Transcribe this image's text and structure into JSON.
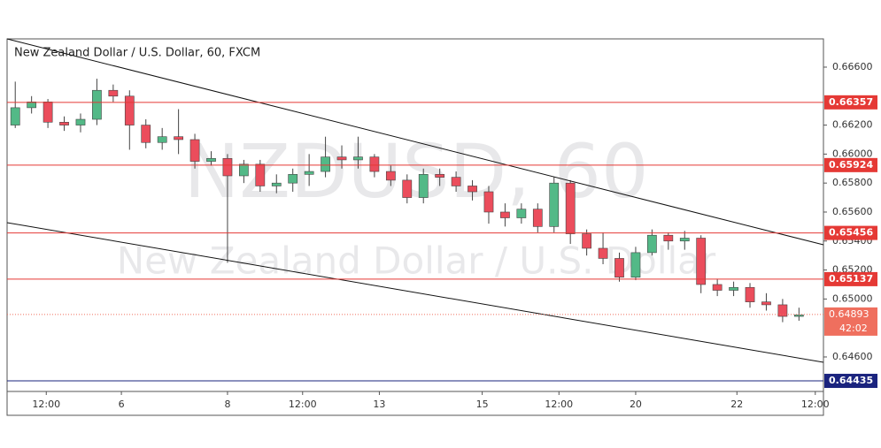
{
  "chart_data": {
    "type": "candlestick",
    "title": "New Zealand Dollar / U.S. Dollar, 60, FXCM",
    "watermark": "NZDUSD, 60",
    "watermark_subtitle": "New Zealand Dollar / U.S. Dollar",
    "up_color": "#53b987",
    "down_color": "#eb4d5c",
    "xlim": [
      0,
      50
    ],
    "ylim": [
      0.64362,
      0.66795
    ],
    "xticks": [
      {
        "value": 2.4,
        "label": "12:00"
      },
      {
        "value": 7.0,
        "label": "6"
      },
      {
        "value": 13.5,
        "label": "8"
      },
      {
        "value": 18.1,
        "label": "12:00"
      },
      {
        "value": 22.8,
        "label": "13"
      },
      {
        "value": 29.1,
        "label": "15"
      },
      {
        "value": 33.8,
        "label": "12:00"
      },
      {
        "value": 38.5,
        "label": "20"
      },
      {
        "value": 44.7,
        "label": "22"
      },
      {
        "value": 49.5,
        "label": "12:00"
      }
    ],
    "yticks": [
      {
        "value": 0.666,
        "label": "0.66600"
      },
      {
        "value": 0.662,
        "label": "0.66200"
      },
      {
        "value": 0.66,
        "label": "0.66000"
      },
      {
        "value": 0.658,
        "label": "0.65800"
      },
      {
        "value": 0.656,
        "label": "0.65600"
      },
      {
        "value": 0.654,
        "label": "0.65400"
      },
      {
        "value": 0.652,
        "label": "0.65200"
      },
      {
        "value": 0.65,
        "label": "0.65000"
      },
      {
        "value": 0.646,
        "label": "0.64600"
      }
    ],
    "x": [
      0.5,
      1.5,
      2.5,
      3.5,
      4.5,
      5.5,
      6.5,
      7.5,
      8.5,
      9.5,
      10.5,
      11.5,
      12.5,
      13.5,
      14.5,
      15.5,
      16.5,
      17.5,
      18.5,
      19.5,
      20.5,
      21.5,
      22.5,
      23.5,
      24.5,
      25.5,
      26.5,
      27.5,
      28.5,
      29.5,
      30.5,
      31.5,
      32.5,
      33.5,
      34.5,
      35.5,
      36.5,
      37.5,
      38.5,
      39.5,
      40.5,
      41.5,
      42.5,
      43.5,
      44.5,
      45.5,
      46.5,
      47.5,
      48.5
    ],
    "open": [
      0.662,
      0.6632,
      0.6636,
      0.6622,
      0.662,
      0.6624,
      0.6644,
      0.664,
      0.662,
      0.6608,
      0.6612,
      0.661,
      0.6595,
      0.6597,
      0.6585,
      0.6593,
      0.6578,
      0.658,
      0.6586,
      0.6588,
      0.6598,
      0.6596,
      0.6598,
      0.6588,
      0.6582,
      0.657,
      0.6586,
      0.6584,
      0.6578,
      0.6574,
      0.656,
      0.6556,
      0.6562,
      0.655,
      0.658,
      0.6545,
      0.6535,
      0.6528,
      0.6515,
      0.6532,
      0.6544,
      0.654,
      0.6542,
      0.651,
      0.6506,
      0.6508,
      0.6498,
      0.6496,
      0.6488
    ],
    "high": [
      0.665,
      0.664,
      0.6638,
      0.6626,
      0.6628,
      0.6652,
      0.6648,
      0.6644,
      0.6624,
      0.6618,
      0.6631,
      0.6614,
      0.6602,
      0.66,
      0.6596,
      0.6596,
      0.6586,
      0.659,
      0.66,
      0.6612,
      0.6606,
      0.6612,
      0.66,
      0.6592,
      0.6586,
      0.659,
      0.659,
      0.6588,
      0.6582,
      0.6578,
      0.6566,
      0.6566,
      0.6566,
      0.6584,
      0.6582,
      0.6548,
      0.6546,
      0.6532,
      0.6536,
      0.6548,
      0.6546,
      0.6547,
      0.6544,
      0.6514,
      0.6512,
      0.6511,
      0.6504,
      0.65,
      0.6494
    ],
    "low": [
      0.6618,
      0.6628,
      0.6618,
      0.6616,
      0.6615,
      0.662,
      0.6636,
      0.6603,
      0.6604,
      0.6603,
      0.66,
      0.659,
      0.6592,
      0.6525,
      0.658,
      0.6574,
      0.6573,
      0.6574,
      0.6578,
      0.6584,
      0.659,
      0.659,
      0.6584,
      0.6578,
      0.6566,
      0.6566,
      0.6578,
      0.6574,
      0.6568,
      0.6552,
      0.655,
      0.6552,
      0.6546,
      0.6546,
      0.6538,
      0.653,
      0.6524,
      0.6512,
      0.6513,
      0.653,
      0.6534,
      0.6534,
      0.6504,
      0.6502,
      0.6502,
      0.6494,
      0.6492,
      0.6484,
      0.6485
    ],
    "close": [
      0.6632,
      0.6636,
      0.6622,
      0.662,
      0.6624,
      0.6644,
      0.664,
      0.662,
      0.6608,
      0.6612,
      0.661,
      0.6595,
      0.6597,
      0.6585,
      0.6593,
      0.6578,
      0.658,
      0.6586,
      0.6588,
      0.6598,
      0.6596,
      0.6598,
      0.6588,
      0.6582,
      0.657,
      0.6586,
      0.6584,
      0.6578,
      0.6574,
      0.656,
      0.6556,
      0.6562,
      0.655,
      0.658,
      0.6545,
      0.6535,
      0.6528,
      0.6515,
      0.6532,
      0.6544,
      0.654,
      0.6542,
      0.651,
      0.6506,
      0.6508,
      0.6498,
      0.6496,
      0.6488,
      0.6489
    ],
    "levels": [
      {
        "value": 0.66357,
        "color": "#e53935"
      },
      {
        "value": 0.65924,
        "color": "#e53935"
      },
      {
        "value": 0.65456,
        "color": "#e53935"
      },
      {
        "value": 0.65137,
        "color": "#e53935"
      },
      {
        "value": 0.64435,
        "color": "#1a237e"
      }
    ],
    "last_price": {
      "value": 0.64893,
      "countdown": "42:02",
      "color": "#ef6f5e"
    },
    "trendlines": [
      {
        "start": [
          0,
          0.66795
        ],
        "end": [
          50,
          0.65374
        ]
      },
      {
        "start": [
          0,
          0.65527
        ],
        "end": [
          50,
          0.64563
        ]
      }
    ]
  }
}
